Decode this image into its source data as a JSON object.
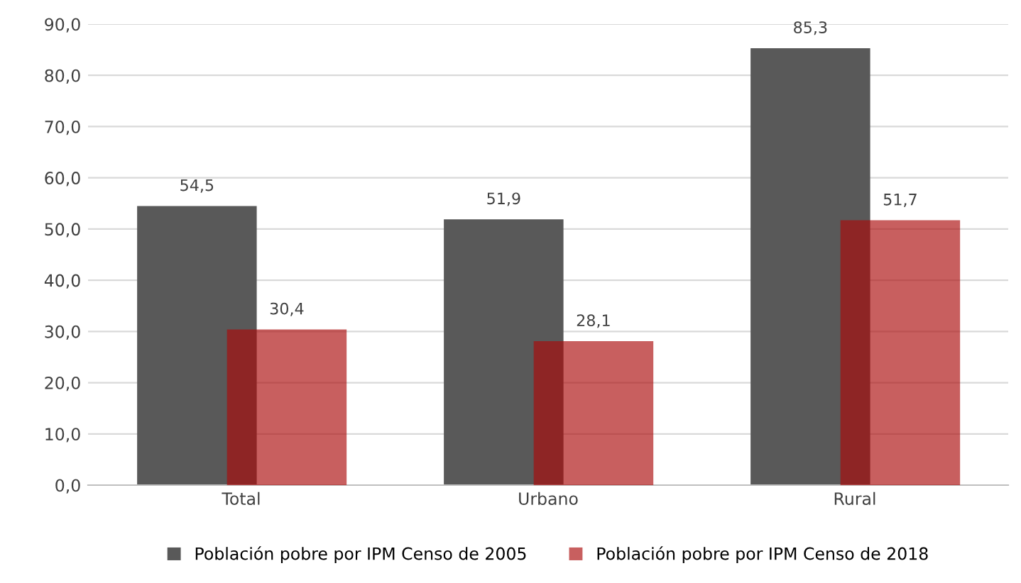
{
  "chart_data": {
    "type": "bar",
    "categories": [
      "Total",
      "Urbano",
      "Rural"
    ],
    "series": [
      {
        "name": "Población pobre por IPM Censo de 2005",
        "color": "#595959",
        "values": [
          54.5,
          51.9,
          85.3
        ],
        "value_labels": [
          "54,5",
          "51,9",
          "85,3"
        ]
      },
      {
        "name": "Población pobre por IPM Censo de 2018",
        "color": "#ab0909",
        "values": [
          30.4,
          28.1,
          51.7
        ],
        "value_labels": [
          "30,4",
          "28,1",
          "51,7"
        ]
      }
    ],
    "ylim": [
      0,
      90
    ],
    "yticks": [
      {
        "value": 0,
        "label": "0,0"
      },
      {
        "value": 10,
        "label": "10,0"
      },
      {
        "value": 20,
        "label": "20,0"
      },
      {
        "value": 30,
        "label": "30,0"
      },
      {
        "value": 40,
        "label": "40,0"
      },
      {
        "value": 50,
        "label": "50,0"
      },
      {
        "value": 60,
        "label": "60,0"
      },
      {
        "value": 70,
        "label": "70,0"
      },
      {
        "value": 80,
        "label": "80,0"
      },
      {
        "value": 90,
        "label": "90,0"
      }
    ],
    "grid": "y",
    "legend": "bottom"
  }
}
